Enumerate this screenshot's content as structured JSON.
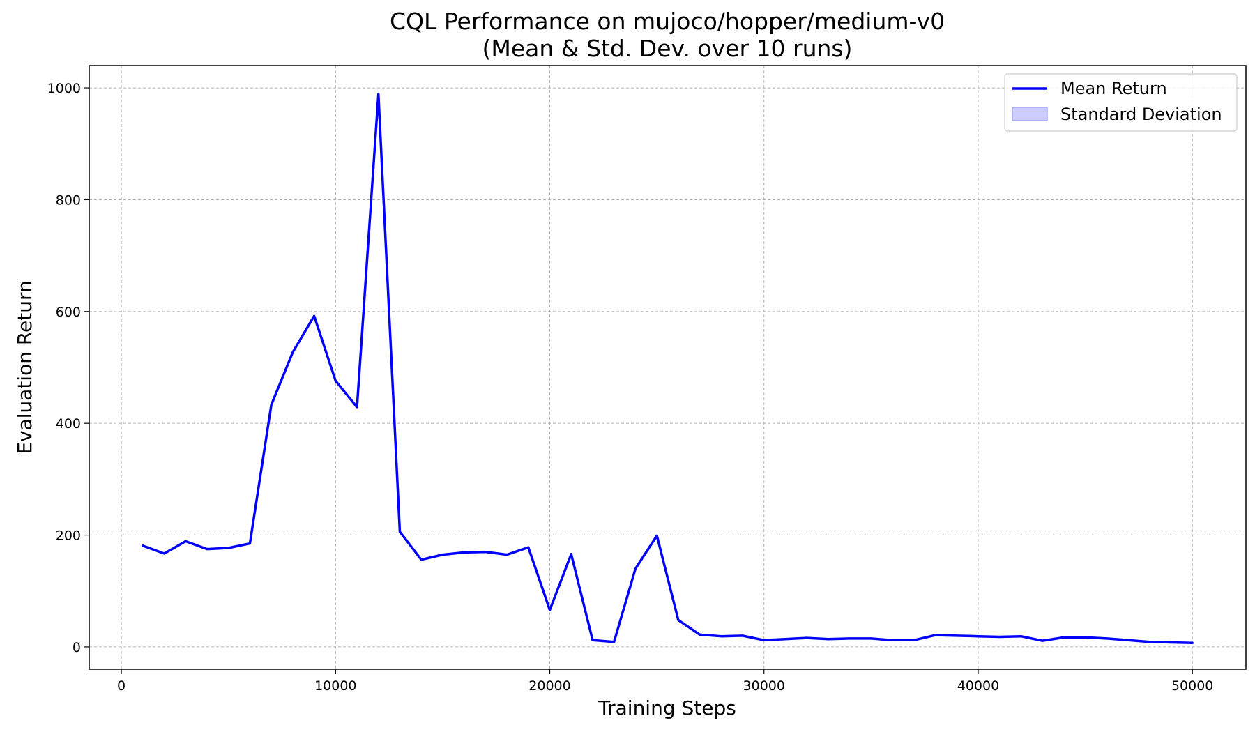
{
  "chart_data": {
    "type": "line",
    "title_line1": "CQL Performance on mujoco/hopper/medium-v0",
    "title_line2": "(Mean & Std. Dev. over 10 runs)",
    "xlabel": "Training Steps",
    "ylabel": "Evaluation Return",
    "xlim": [
      -1500,
      52500
    ],
    "ylim": [
      -40,
      1040
    ],
    "x_ticks": [
      0,
      10000,
      20000,
      30000,
      40000,
      50000
    ],
    "y_ticks": [
      0,
      200,
      400,
      600,
      800,
      1000
    ],
    "grid": true,
    "legend_position": "top-right",
    "legend": [
      "Mean Return",
      "Standard Deviation"
    ],
    "colors": {
      "line": "#0000ff",
      "std_fill": "#ccccff",
      "std_edge": "#9999ee"
    },
    "series": [
      {
        "name": "Mean Return",
        "x": [
          1000,
          2000,
          3000,
          4000,
          5000,
          6000,
          7000,
          8000,
          9000,
          10000,
          11000,
          12000,
          13000,
          14000,
          15000,
          16000,
          17000,
          18000,
          19000,
          20000,
          21000,
          22000,
          23000,
          24000,
          25000,
          26000,
          27000,
          28000,
          29000,
          30000,
          31000,
          32000,
          33000,
          34000,
          35000,
          36000,
          37000,
          38000,
          39000,
          40000,
          41000,
          42000,
          43000,
          44000,
          45000,
          46000,
          47000,
          48000,
          49000,
          50000
        ],
        "y": [
          181,
          167,
          189,
          175,
          177,
          185,
          433,
          527,
          592,
          476,
          429,
          989,
          206,
          156,
          165,
          169,
          170,
          165,
          178,
          66,
          166,
          12,
          9,
          140,
          199,
          48,
          22,
          19,
          20,
          12,
          14,
          16,
          14,
          15,
          15,
          12,
          12,
          21,
          20,
          19,
          18,
          19,
          11,
          17,
          17,
          15,
          12,
          9,
          8,
          7
        ]
      }
    ]
  }
}
